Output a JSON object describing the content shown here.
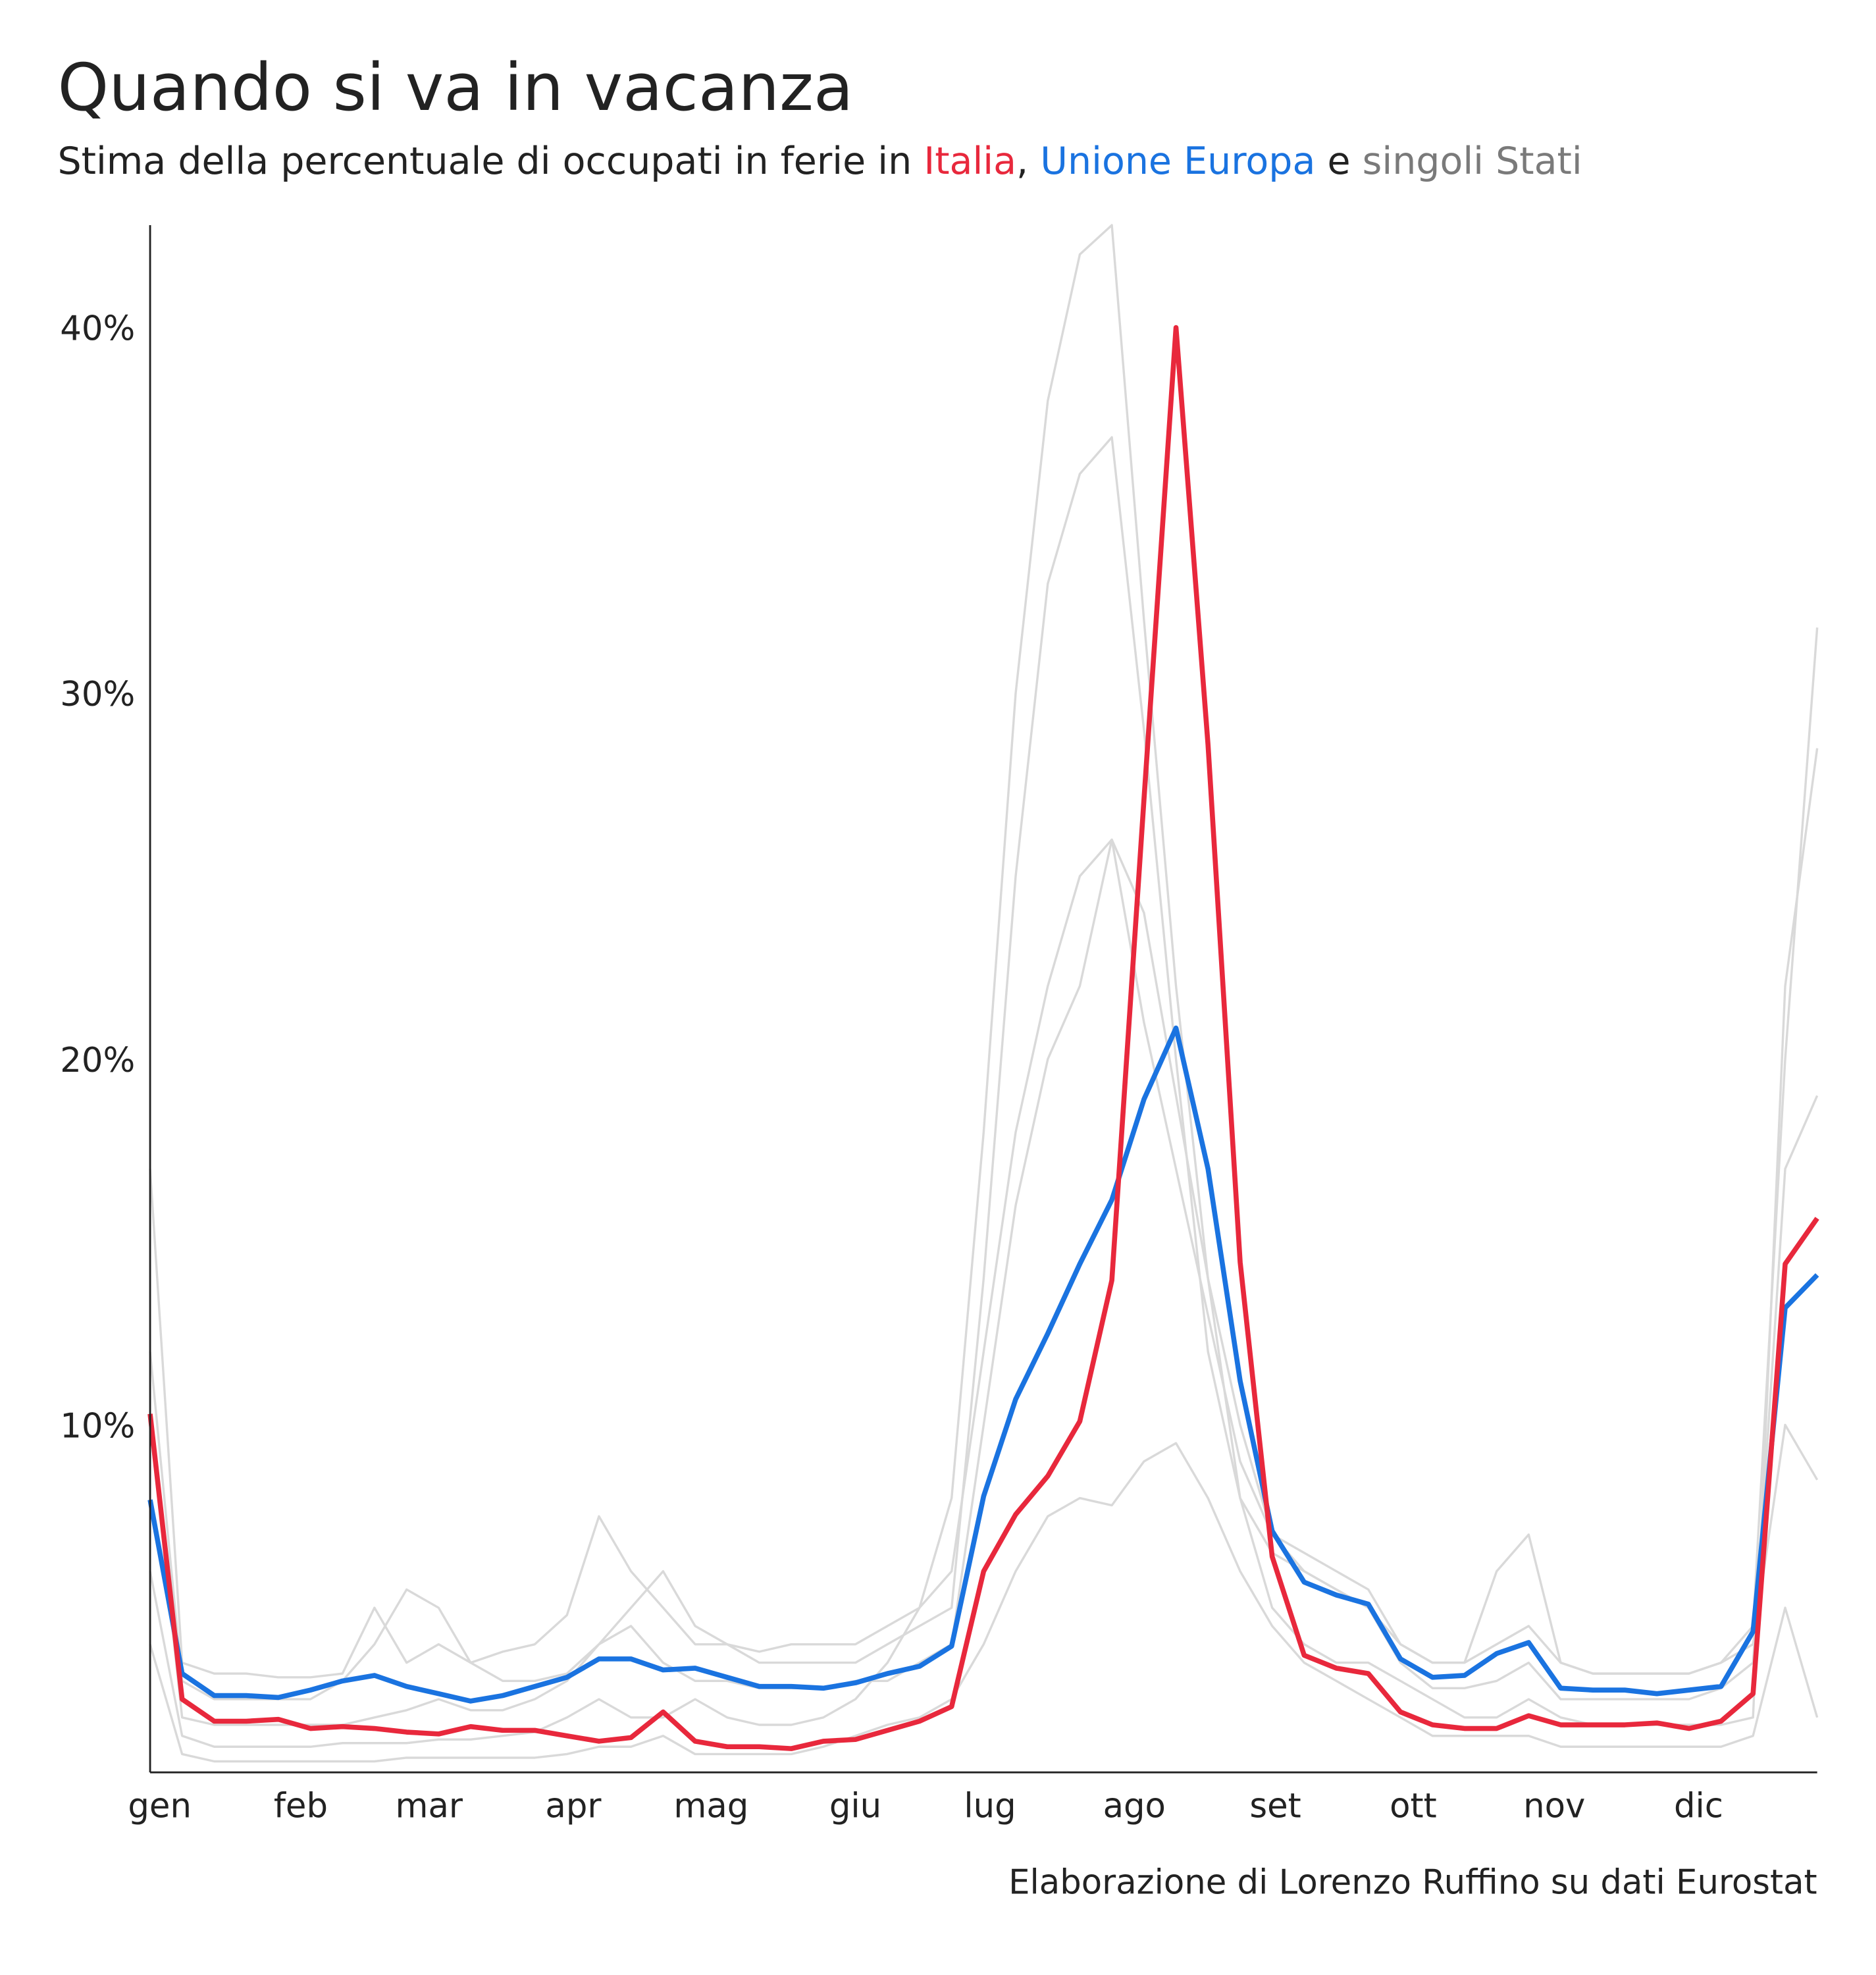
{
  "chart_data": {
    "type": "line",
    "title": "Quando si va in vacanza",
    "subtitle": {
      "lead": "Stima della percentuale di occupati in ferie in",
      "italy": "Italia",
      "comma": ",",
      "eu": "Unione Europa",
      "and": "e",
      "countries": "singoli Stati"
    },
    "caption": "Elaborazione di Lorenzo Ruffino su dati Eurostat",
    "x": [
      1,
      2,
      3,
      4,
      5,
      6,
      7,
      8,
      9,
      10,
      11,
      12,
      13,
      14,
      15,
      16,
      17,
      18,
      19,
      20,
      21,
      22,
      23,
      24,
      25,
      26,
      27,
      28,
      29,
      30,
      31,
      32,
      33,
      34,
      35,
      36,
      37,
      38,
      39,
      40,
      41,
      42,
      43,
      44,
      45,
      46,
      47,
      48,
      49,
      50,
      51,
      52,
      53
    ],
    "xlim": [
      1,
      53
    ],
    "xticks": [
      {
        "value": 1.3,
        "label": "gen"
      },
      {
        "value": 5.7,
        "label": "feb"
      },
      {
        "value": 9.7,
        "label": "mar"
      },
      {
        "value": 14.2,
        "label": "apr"
      },
      {
        "value": 18.5,
        "label": "mag"
      },
      {
        "value": 23,
        "label": "giu"
      },
      {
        "value": 27.2,
        "label": "lug"
      },
      {
        "value": 31.7,
        "label": "ago"
      },
      {
        "value": 36.1,
        "label": "set"
      },
      {
        "value": 40.4,
        "label": "ott"
      },
      {
        "value": 44.8,
        "label": "nov"
      },
      {
        "value": 49.3,
        "label": "dic"
      }
    ],
    "ylim": [
      0.5,
      42.8
    ],
    "yticks": [
      {
        "value": 10,
        "label": "10%"
      },
      {
        "value": 20,
        "label": "20%"
      },
      {
        "value": 30,
        "label": "30%"
      },
      {
        "value": 40,
        "label": "40%"
      }
    ],
    "grid": false,
    "series": [
      {
        "color": "#d9d9d9",
        "values": [
          6,
          1.5,
          1.2,
          1.2,
          1.2,
          1.2,
          1.3,
          1.3,
          1.3,
          1.4,
          1.4,
          1.5,
          1.6,
          2,
          2.5,
          2,
          2,
          2.5,
          2,
          1.8,
          1.8,
          2,
          2.5,
          3.5,
          5,
          8,
          18,
          30,
          38,
          42,
          42.8,
          32,
          22,
          14,
          8,
          5,
          4,
          3.5,
          3.5,
          3,
          2.5,
          2,
          2,
          2.5,
          2,
          1.8,
          1.8,
          1.8,
          1.8,
          1.8,
          2,
          22,
          28.5
        ]
      },
      {
        "color": "#d9d9d9",
        "values": [
          17,
          3.5,
          3.2,
          3.2,
          3.1,
          3.1,
          3.2,
          5,
          3.5,
          4,
          3.5,
          3,
          3,
          3.2,
          4,
          5,
          6,
          4.5,
          4,
          3.5,
          3.5,
          3.5,
          3.5,
          4,
          4.5,
          5,
          14,
          25,
          33,
          36,
          37,
          29,
          20,
          12,
          8,
          6.5,
          6,
          5.5,
          5,
          4,
          3.5,
          3.5,
          4,
          4.5,
          3.5,
          3.2,
          3.2,
          3.2,
          3.2,
          3.5,
          4.5,
          20,
          31.8
        ]
      },
      {
        "color": "#d9d9d9",
        "values": [
          12,
          3,
          2.5,
          2.5,
          2.5,
          2.5,
          3,
          4,
          5.5,
          5,
          3.5,
          3.8,
          4,
          4.8,
          7.5,
          6,
          5,
          4,
          4,
          3.8,
          4,
          4,
          4,
          4.5,
          5,
          6,
          12,
          18,
          22,
          25,
          26,
          21,
          17,
          13,
          9,
          7,
          6.5,
          6,
          5.5,
          4,
          3.5,
          3.5,
          6,
          7,
          3.5,
          3.2,
          3.2,
          3.2,
          3.2,
          3.5,
          4,
          10,
          8.5
        ]
      },
      {
        "color": "#d9d9d9",
        "values": [
          4,
          1,
          0.8,
          0.8,
          0.8,
          0.8,
          0.8,
          0.8,
          0.9,
          0.9,
          0.9,
          0.9,
          0.9,
          1,
          1.2,
          1.2,
          1.5,
          1,
          1,
          1,
          1,
          1.2,
          1.5,
          1.8,
          2,
          2.5,
          4,
          6,
          7.5,
          8,
          7.8,
          9,
          9.5,
          8,
          6,
          4.5,
          3.5,
          3,
          2.5,
          2,
          1.5,
          1.5,
          1.5,
          1.5,
          1.2,
          1.2,
          1.2,
          1.2,
          1.2,
          1.2,
          1.5,
          5,
          2
        ]
      },
      {
        "color": "#d9d9d9",
        "values": [
          10,
          2,
          1.8,
          1.8,
          1.8,
          1.8,
          1.8,
          2,
          2.2,
          2.5,
          2.2,
          2.2,
          2.5,
          3,
          4,
          4.5,
          3.5,
          3,
          3,
          2.8,
          2.8,
          2.8,
          3,
          3,
          3.5,
          4,
          10,
          16,
          20,
          22,
          26,
          24,
          19,
          14,
          10,
          7,
          6,
          5.5,
          5,
          3.5,
          2.8,
          2.8,
          3,
          3.5,
          2.5,
          2.5,
          2.5,
          2.5,
          2.5,
          2.8,
          3.5,
          17,
          19
        ]
      },
      {
        "name": "Unione Europa",
        "color": "#1a73e0",
        "values": [
          7.95,
          3.2,
          2.6,
          2.6,
          2.55,
          2.75,
          3.0,
          3.15,
          2.85,
          2.65,
          2.45,
          2.6,
          2.85,
          3.1,
          3.6,
          3.6,
          3.3,
          3.35,
          3.1,
          2.85,
          2.85,
          2.8,
          2.95,
          3.2,
          3.4,
          3.95,
          8.05,
          10.7,
          12.5,
          14.4,
          16.15,
          18.9,
          20.85,
          17.0,
          11.2,
          7.1,
          5.7,
          5.35,
          5.1,
          3.6,
          3.1,
          3.15,
          3.75,
          4.05,
          2.8,
          2.75,
          2.75,
          2.65,
          2.75,
          2.85,
          4.35,
          13.2,
          14.1
        ]
      },
      {
        "name": "Italia",
        "color": "#e8283c",
        "values": [
          10.3,
          2.5,
          1.9,
          1.9,
          1.95,
          1.7,
          1.75,
          1.7,
          1.6,
          1.55,
          1.75,
          1.65,
          1.65,
          1.5,
          1.35,
          1.45,
          2.15,
          1.35,
          1.2,
          1.2,
          1.15,
          1.35,
          1.4,
          1.65,
          1.9,
          2.3,
          6.0,
          7.55,
          8.6,
          10.1,
          13.95,
          27.1,
          40.0,
          28.6,
          14.45,
          6.4,
          3.7,
          3.35,
          3.2,
          2.15,
          1.8,
          1.7,
          1.7,
          2.05,
          1.8,
          1.8,
          1.8,
          1.85,
          1.7,
          1.9,
          2.65,
          14.4,
          15.65
        ]
      }
    ]
  }
}
